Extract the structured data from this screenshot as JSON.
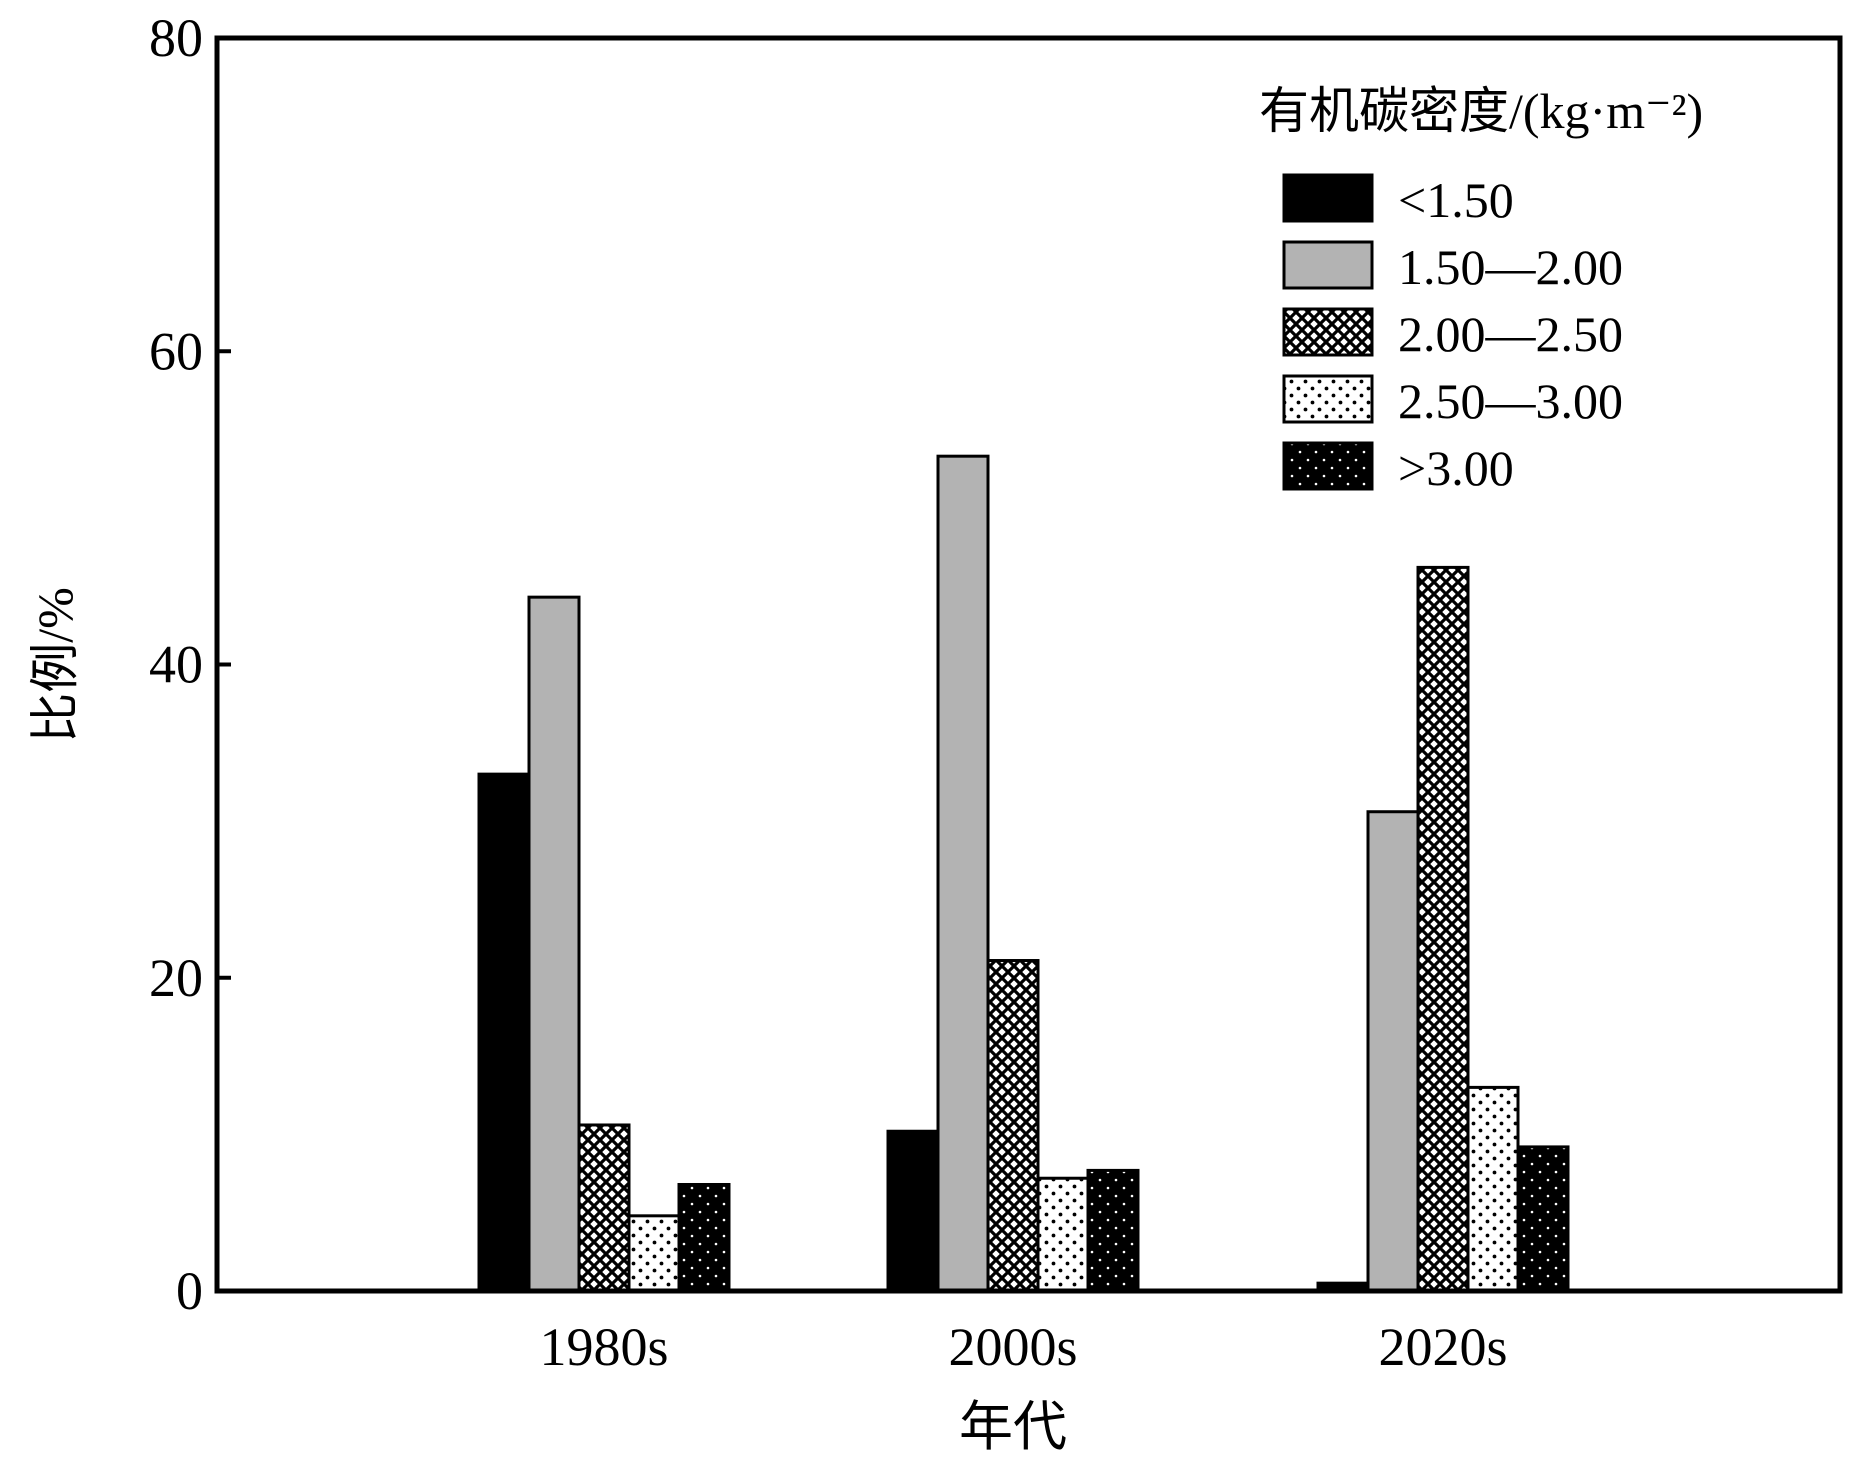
{
  "chart_data": {
    "type": "bar",
    "xlabel": "年代",
    "ylabel": "比例/%",
    "ylim": [
      0,
      80
    ],
    "yticks": [
      "0",
      "20",
      "40",
      "60",
      "80"
    ],
    "categories": [
      "1980s",
      "2000s",
      "2020s"
    ],
    "legend": {
      "title": "有机碳密度/(kg·m⁻²)",
      "placement": "top-right"
    },
    "series": [
      {
        "name": "<1.50",
        "pattern": "solid-black",
        "color": "#000000",
        "values": [
          33.0,
          10.2,
          0.5
        ]
      },
      {
        "name": "1.50—2.00",
        "pattern": "solid-gray",
        "color": "#b3b3b3",
        "values": [
          44.3,
          53.3,
          30.6
        ]
      },
      {
        "name": "2.00—2.50",
        "pattern": "crosshatch",
        "color": "#ffffff",
        "values": [
          10.6,
          21.1,
          46.2
        ]
      },
      {
        "name": "2.50—3.00",
        "pattern": "sparse-dots",
        "color": "#ffffff",
        "values": [
          4.8,
          7.2,
          13.0
        ]
      },
      {
        "name": ">3.00",
        "pattern": "dots-on-black",
        "color": "#000000",
        "values": [
          6.8,
          7.7,
          9.2
        ]
      }
    ],
    "grid": false
  }
}
